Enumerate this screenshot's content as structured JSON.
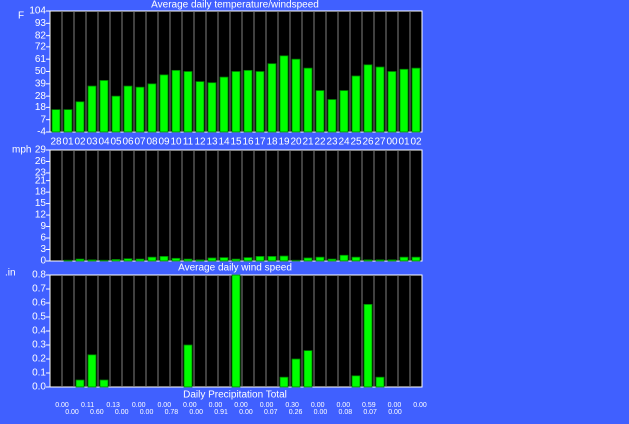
{
  "chart_data": [
    {
      "type": "bar",
      "title": "Average daily temperature/windspeed",
      "y_label": "F",
      "color": "#00ff00",
      "categories": [
        "28",
        "01",
        "02",
        "03",
        "04",
        "05",
        "06",
        "07",
        "08",
        "09",
        "10",
        "11",
        "12",
        "13",
        "14",
        "15",
        "16",
        "17",
        "18",
        "19",
        "20",
        "21",
        "22",
        "23",
        "24",
        "25",
        "26",
        "27",
        "00",
        "01",
        "02"
      ],
      "values": [
        16,
        16,
        23,
        37,
        42,
        28,
        37,
        36,
        39,
        47,
        51,
        50,
        41,
        40,
        45,
        50,
        51,
        50,
        57,
        64,
        61,
        53,
        33,
        25,
        33,
        46,
        56,
        54,
        50,
        52,
        53
      ],
      "ylim": [
        -4,
        104
      ],
      "yticks": [
        -4,
        7,
        18,
        28,
        39,
        50,
        61,
        72,
        82,
        93,
        104
      ]
    },
    {
      "type": "bar",
      "title": "Average daily wind speed",
      "y_label": "mph",
      "color": "#00ff00",
      "values": [
        0,
        0.2,
        0.5,
        0.3,
        0.2,
        0.4,
        0.6,
        0.5,
        1,
        1.2,
        0.7,
        0.5,
        0.3,
        0.8,
        0.9,
        0.5,
        0.9,
        1.2,
        1.2,
        1.3,
        0.2,
        0.8,
        1,
        0.5,
        1.5,
        1,
        0.3,
        0.3,
        0.3,
        1,
        1
      ],
      "ylim": [
        0,
        29
      ],
      "yticks": [
        0,
        3,
        6,
        9,
        12,
        15,
        18,
        21,
        23,
        26,
        29
      ]
    },
    {
      "type": "bar",
      "title": "Daily Precipitation Total",
      "y_label": ".in",
      "color": "#00ff00",
      "values": [
        0,
        0,
        0.05,
        0.23,
        0.05,
        0,
        0,
        0,
        0,
        0,
        0,
        0.3,
        0,
        0,
        0,
        0.8,
        0,
        0,
        0,
        0.07,
        0.2,
        0.26,
        0,
        0,
        0,
        0.08,
        0.59,
        0.07,
        0,
        0,
        0
      ],
      "ylim": [
        0,
        0.8
      ],
      "yticks": [
        {
          "value": 0,
          "label": "0.0"
        },
        0.1,
        0.2,
        0.3,
        0.4,
        0.5,
        0.6,
        0.7,
        0.8
      ],
      "label_rows": [
        [
          "0.00",
          "0.11",
          "0.13",
          "0.00",
          "0.00",
          "0.00",
          "0.00",
          "0.00",
          "0.00",
          "0.30",
          "0.00",
          "0.00",
          "0.59",
          "0.00",
          "0.00"
        ],
        [
          "0.00",
          "0.60",
          "0.00",
          "0.00",
          "0.78",
          "0.00",
          "0.91",
          "0.00",
          "0.07",
          "0.26",
          "0.00",
          "0.08",
          "0.07",
          "0.00"
        ]
      ]
    }
  ]
}
